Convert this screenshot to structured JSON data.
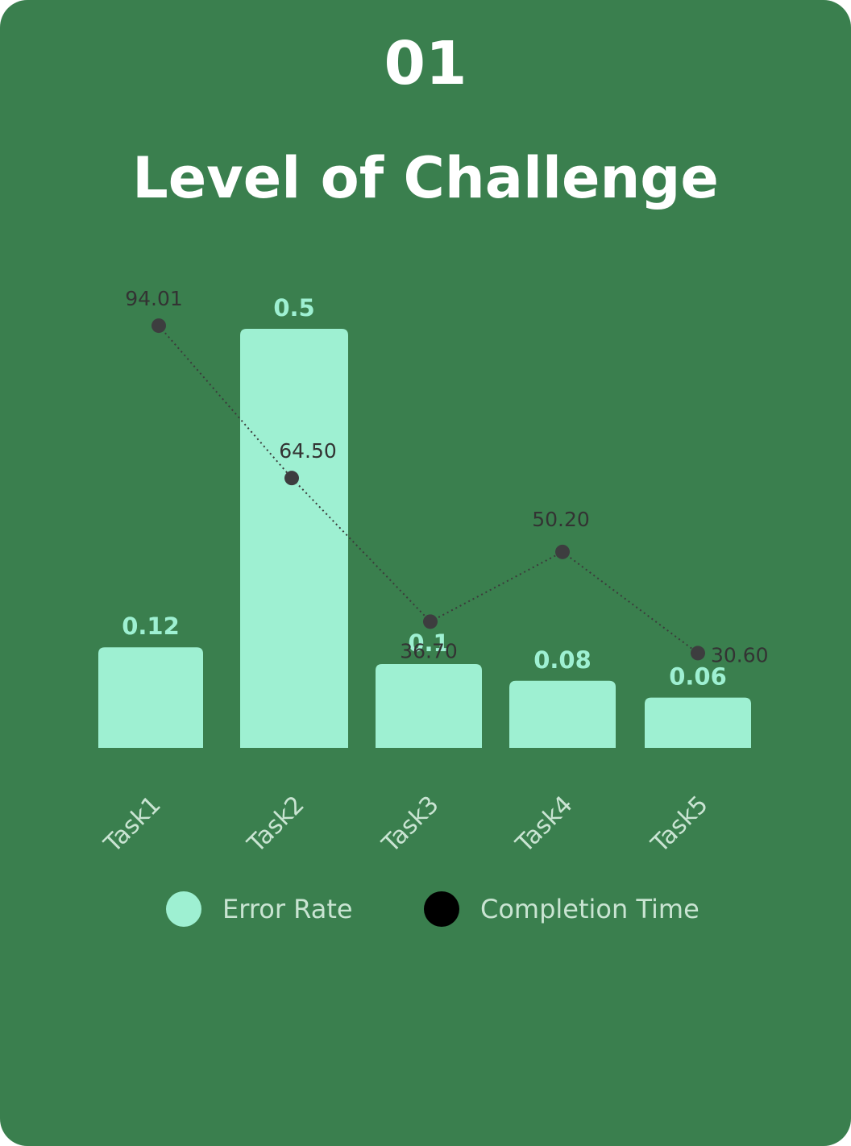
{
  "header": {
    "number": "01",
    "title": "Level of Challenge"
  },
  "colors": {
    "background": "#3a7f4e",
    "bar": "#9ef0d2",
    "bar_label": "#9ef0d2",
    "line": "#3b3b3b",
    "point": "#3d3d3f",
    "line_label": "#333333",
    "axis_label": "#c9e4d2"
  },
  "chart_data": {
    "type": "bar",
    "categories": [
      "Task1",
      "Task2",
      "Task3",
      "Task4",
      "Task5"
    ],
    "series": [
      {
        "name": "Error Rate",
        "type": "bar",
        "values": [
          0.12,
          0.5,
          0.1,
          0.08,
          0.06
        ],
        "labels": [
          "0.12",
          "0.5",
          "0.1",
          "0.08",
          "0.06"
        ]
      },
      {
        "name": "Completion Time",
        "type": "line",
        "style": "dotted",
        "values": [
          94.01,
          64.5,
          36.7,
          50.2,
          30.6
        ],
        "labels": [
          "94.01",
          "64.50",
          "36.70",
          "50.20",
          "30.60"
        ]
      }
    ],
    "legend": [
      "Error Rate",
      "Completion Time"
    ],
    "legend_position": "bottom",
    "grid": false
  },
  "legend": {
    "error_rate": "Error Rate",
    "completion_time": "Completion Time"
  }
}
